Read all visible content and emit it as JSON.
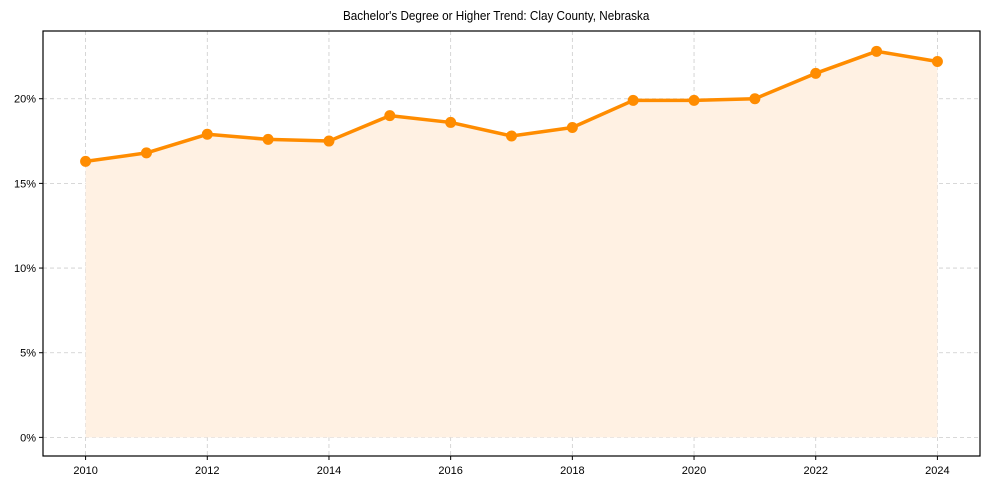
{
  "chart_data": {
    "type": "line",
    "title": "Bachelor's Degree or Higher Trend: Clay County, Nebraska",
    "xlabel": "",
    "ylabel": "",
    "x": [
      2010,
      2011,
      2012,
      2013,
      2014,
      2015,
      2016,
      2017,
      2018,
      2019,
      2020,
      2021,
      2022,
      2023,
      2024
    ],
    "series": [
      {
        "name": "Bachelor's Degree or Higher",
        "values": [
          16.3,
          16.8,
          17.9,
          17.6,
          17.5,
          19.0,
          18.6,
          17.8,
          18.3,
          19.9,
          19.9,
          20.0,
          21.5,
          22.8,
          22.2
        ],
        "color": "#ff8c00",
        "fill_color": "#fff1e3",
        "markers": true,
        "area_fill": true
      }
    ],
    "xlim": [
      2009.3,
      2024.7
    ],
    "ylim": [
      -1.1,
      24.0
    ],
    "x_ticks": [
      2010,
      2012,
      2014,
      2016,
      2018,
      2020,
      2022,
      2024
    ],
    "x_tick_labels": [
      "2010",
      "2012",
      "2014",
      "2016",
      "2018",
      "2020",
      "2022",
      "2024"
    ],
    "y_ticks": [
      0,
      5,
      10,
      15,
      20
    ],
    "y_tick_labels": [
      "0%",
      "5%",
      "10%",
      "15%",
      "20%"
    ],
    "grid": true,
    "legend": null
  }
}
